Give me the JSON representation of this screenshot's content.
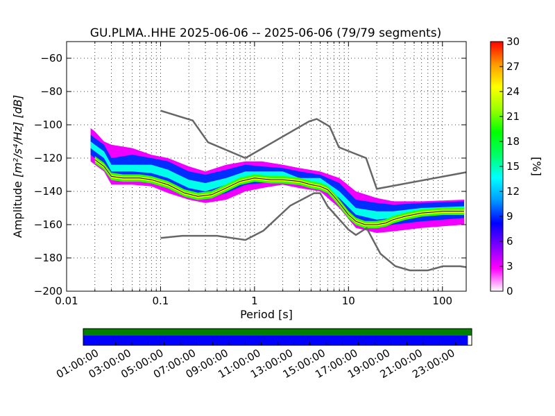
{
  "chart_data": {
    "type": "heatmap",
    "title": "GU.PLMA..HHE   2025-06-06 -- 2025-06-06  (79/79 segments)",
    "xlabel": "Period [s]",
    "ylabel_prefix": "Amplitude ",
    "ylabel_units": "[m²/s⁴/Hz] [dB]",
    "x_scale": "log",
    "xlim": [
      0.01,
      179
    ],
    "ylim": [
      -200,
      -50
    ],
    "x_ticks": [
      {
        "value": 0.01,
        "label": "0.01"
      },
      {
        "value": 0.1,
        "label": "0.1"
      },
      {
        "value": 1,
        "label": "1"
      },
      {
        "value": 10,
        "label": "10"
      },
      {
        "value": 100,
        "label": "100"
      }
    ],
    "y_ticks": [
      {
        "value": -60,
        "label": "−60"
      },
      {
        "value": -80,
        "label": "−80"
      },
      {
        "value": -100,
        "label": "−100"
      },
      {
        "value": -120,
        "label": "−120"
      },
      {
        "value": -140,
        "label": "−140"
      },
      {
        "value": -160,
        "label": "−160"
      },
      {
        "value": -180,
        "label": "−180"
      },
      {
        "value": -200,
        "label": "−200"
      }
    ],
    "grid": true,
    "colorbar": {
      "label": "[%]",
      "range": [
        0,
        30
      ],
      "ticks": [
        {
          "value": 0,
          "label": "0"
        },
        {
          "value": 3,
          "label": "3"
        },
        {
          "value": 6,
          "label": "6"
        },
        {
          "value": 9,
          "label": "9"
        },
        {
          "value": 12,
          "label": "12"
        },
        {
          "value": 15,
          "label": "15"
        },
        {
          "value": 18,
          "label": "18"
        },
        {
          "value": 21,
          "label": "21"
        },
        {
          "value": 24,
          "label": "24"
        },
        {
          "value": 27,
          "label": "27"
        },
        {
          "value": 30,
          "label": "30"
        }
      ],
      "colors": [
        "#ffffff",
        "#ff00ff",
        "#7f00ff",
        "#0000ff",
        "#0099ff",
        "#00ffff",
        "#00ff66",
        "#00ff00",
        "#99ff00",
        "#ffff00",
        "#ff9900",
        "#ff0000"
      ]
    },
    "noise_models": {
      "color": "#666666",
      "high": [
        {
          "x": 0.1,
          "y": -91.5
        },
        {
          "x": 0.22,
          "y": -97.4
        },
        {
          "x": 0.32,
          "y": -110.5
        },
        {
          "x": 0.8,
          "y": -120
        },
        {
          "x": 3.8,
          "y": -98
        },
        {
          "x": 4.6,
          "y": -96.5
        },
        {
          "x": 6.3,
          "y": -101
        },
        {
          "x": 7.9,
          "y": -113.5
        },
        {
          "x": 15.4,
          "y": -120
        },
        {
          "x": 20,
          "y": -138.5
        },
        {
          "x": 180,
          "y": -128.5
        }
      ],
      "low": [
        {
          "x": 0.1,
          "y": -168
        },
        {
          "x": 0.17,
          "y": -166.7
        },
        {
          "x": 0.4,
          "y": -166.7
        },
        {
          "x": 0.8,
          "y": -169.2
        },
        {
          "x": 1.24,
          "y": -163.7
        },
        {
          "x": 2.4,
          "y": -148.6
        },
        {
          "x": 4.3,
          "y": -141.1
        },
        {
          "x": 5.0,
          "y": -141.1
        },
        {
          "x": 6.0,
          "y": -149
        },
        {
          "x": 10,
          "y": -163
        },
        {
          "x": 12,
          "y": -166.2
        },
        {
          "x": 15.6,
          "y": -162.1
        },
        {
          "x": 21.9,
          "y": -177.5
        },
        {
          "x": 31.6,
          "y": -185
        },
        {
          "x": 45,
          "y": -187.5
        },
        {
          "x": 70,
          "y": -187.5
        },
        {
          "x": 101,
          "y": -185
        },
        {
          "x": 154,
          "y": -185
        },
        {
          "x": 180,
          "y": -185.6
        }
      ]
    },
    "series": [
      {
        "color": "#000000",
        "points": [
          {
            "x": 0.02,
            "y": -121
          },
          {
            "x": 0.025,
            "y": -125
          },
          {
            "x": 0.03,
            "y": -131
          },
          {
            "x": 0.04,
            "y": -132
          },
          {
            "x": 0.06,
            "y": -132
          },
          {
            "x": 0.08,
            "y": -133
          },
          {
            "x": 0.12,
            "y": -136
          },
          {
            "x": 0.18,
            "y": -141
          },
          {
            "x": 0.25,
            "y": -143
          },
          {
            "x": 0.35,
            "y": -142
          },
          {
            "x": 0.5,
            "y": -138
          },
          {
            "x": 0.7,
            "y": -134
          },
          {
            "x": 1.0,
            "y": -132
          },
          {
            "x": 1.5,
            "y": -133
          },
          {
            "x": 2.0,
            "y": -133
          },
          {
            "x": 3.0,
            "y": -134
          },
          {
            "x": 4.0,
            "y": -136
          },
          {
            "x": 5.0,
            "y": -137
          },
          {
            "x": 6.0,
            "y": -139
          },
          {
            "x": 7.0,
            "y": -143
          },
          {
            "x": 8.0,
            "y": -147
          },
          {
            "x": 10,
            "y": -154
          },
          {
            "x": 12,
            "y": -158
          },
          {
            "x": 15,
            "y": -160
          },
          {
            "x": 20,
            "y": -160
          },
          {
            "x": 25,
            "y": -159
          },
          {
            "x": 30,
            "y": -157
          },
          {
            "x": 40,
            "y": -155
          },
          {
            "x": 60,
            "y": -153
          },
          {
            "x": 100,
            "y": -152
          },
          {
            "x": 170,
            "y": -152
          }
        ]
      }
    ],
    "distribution": [
      {
        "x": 0.018,
        "y": [
          -122,
          -118,
          -114,
          -110,
          -106,
          -102
        ]
      },
      {
        "x": 0.02,
        "y": [
          -124,
          -120,
          -116,
          -112,
          -108,
          -104
        ]
      },
      {
        "x": 0.025,
        "y": [
          -128,
          -124,
          -120,
          -116,
          -112,
          -110
        ]
      },
      {
        "x": 0.03,
        "y": [
          -136,
          -132,
          -128,
          -124,
          -120,
          -112
        ]
      },
      {
        "x": 0.05,
        "y": [
          -136,
          -132,
          -128,
          -124,
          -118,
          -114
        ]
      },
      {
        "x": 0.08,
        "y": [
          -137,
          -133,
          -129,
          -124,
          -120,
          -118
        ]
      },
      {
        "x": 0.12,
        "y": [
          -141,
          -137,
          -132,
          -127,
          -122,
          -120
        ]
      },
      {
        "x": 0.2,
        "y": [
          -145,
          -142,
          -138,
          -133,
          -128,
          -125
        ]
      },
      {
        "x": 0.3,
        "y": [
          -147,
          -144,
          -140,
          -135,
          -130,
          -128
        ]
      },
      {
        "x": 0.5,
        "y": [
          -145,
          -141,
          -136,
          -132,
          -127,
          -124
        ]
      },
      {
        "x": 0.8,
        "y": [
          -140,
          -136,
          -132,
          -128,
          -124,
          -122
        ]
      },
      {
        "x": 1.2,
        "y": [
          -138,
          -135,
          -131,
          -128,
          -125,
          -122
        ]
      },
      {
        "x": 2.0,
        "y": [
          -136,
          -134,
          -131,
          -128,
          -126,
          -124
        ]
      },
      {
        "x": 3.0,
        "y": [
          -138,
          -136,
          -134,
          -132,
          -128,
          -126
        ]
      },
      {
        "x": 5.0,
        "y": [
          -140,
          -138,
          -136,
          -132,
          -130,
          -128
        ]
      },
      {
        "x": 8.0,
        "y": [
          -150,
          -147,
          -144,
          -140,
          -135,
          -132
        ]
      },
      {
        "x": 12,
        "y": [
          -162,
          -158,
          -154,
          -150,
          -145,
          -140
        ]
      },
      {
        "x": 20,
        "y": [
          -165,
          -161,
          -157,
          -152,
          -147,
          -144
        ]
      },
      {
        "x": 30,
        "y": [
          -164,
          -160,
          -156,
          -152,
          -148,
          -146
        ]
      },
      {
        "x": 60,
        "y": [
          -162,
          -158,
          -154,
          -150,
          -147,
          -146
        ]
      },
      {
        "x": 170,
        "y": [
          -160,
          -156,
          -152,
          -149,
          -146,
          -145
        ]
      }
    ],
    "distribution_levels": [
      2,
      5,
      9,
      14,
      20,
      24
    ]
  },
  "timeline": {
    "tick_labels": [
      "01:00:00",
      "03:00:00",
      "05:00:00",
      "07:00:00",
      "09:00:00",
      "11:00:00",
      "13:00:00",
      "15:00:00",
      "17:00:00",
      "19:00:00",
      "21:00:00",
      "23:00:00"
    ],
    "top_bar_color": "#008000",
    "bottom_bar_color": "#0000ff",
    "coverage_fraction": 0.99
  }
}
